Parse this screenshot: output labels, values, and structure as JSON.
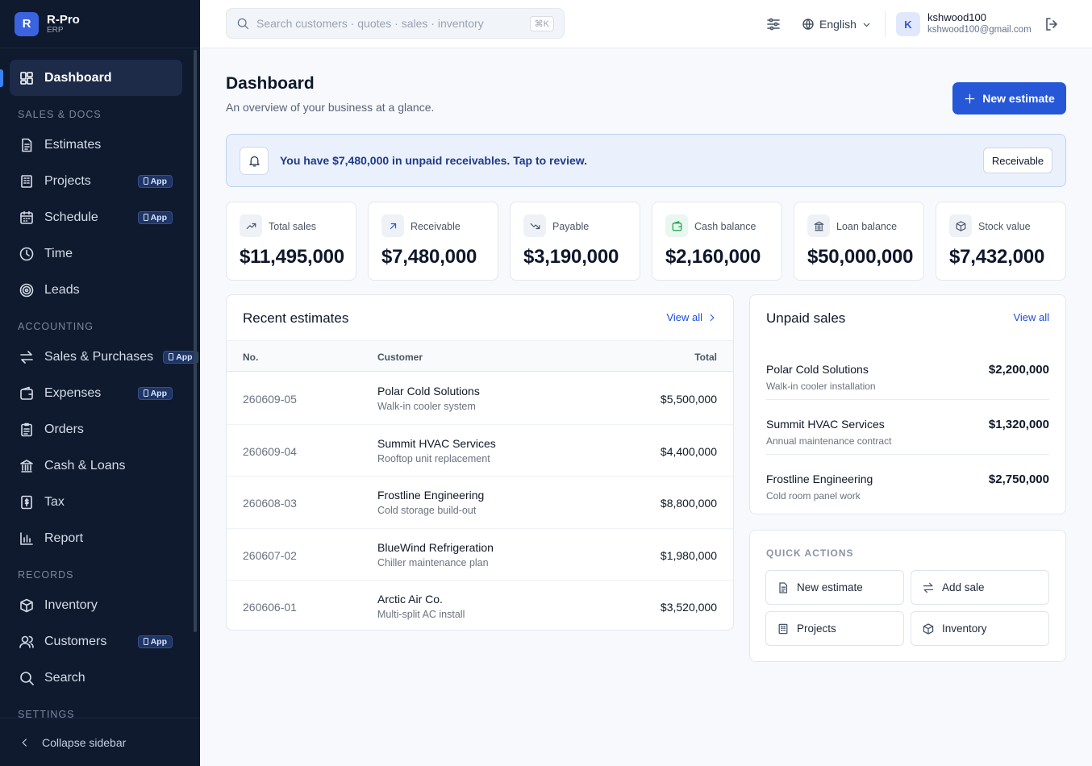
{
  "brand": {
    "logo": "R",
    "name": "R-Pro",
    "sub": "ERP"
  },
  "nav": {
    "primary": {
      "label": "Dashboard"
    },
    "sections": [
      {
        "title": "SALES & DOCS",
        "items": [
          {
            "label": "Estimates"
          },
          {
            "label": "Projects",
            "badge": "App"
          },
          {
            "label": "Schedule",
            "badge": "App"
          },
          {
            "label": "Time"
          },
          {
            "label": "Leads"
          }
        ]
      },
      {
        "title": "ACCOUNTING",
        "items": [
          {
            "label": "Sales & Purchases",
            "badge": "App"
          },
          {
            "label": "Expenses",
            "badge": "App"
          },
          {
            "label": "Orders"
          },
          {
            "label": "Cash & Loans"
          },
          {
            "label": "Tax"
          },
          {
            "label": "Report"
          }
        ]
      },
      {
        "title": "RECORDS",
        "items": [
          {
            "label": "Inventory"
          },
          {
            "label": "Customers",
            "badge": "App"
          },
          {
            "label": "Search"
          }
        ]
      },
      {
        "title": "SETTINGS"
      }
    ],
    "collapse": "Collapse sidebar"
  },
  "topbar": {
    "search": "Search customers · quotes · sales · inventory",
    "shortcut": "⌘K",
    "language": "English",
    "avatar": "K",
    "user": "kshwood100",
    "email": "kshwood100@gmail.com"
  },
  "header": {
    "title": "Dashboard",
    "subtitle": "An overview of your business at a glance.",
    "button": "New estimate"
  },
  "alert": {
    "text": "You have $7,480,000 in unpaid receivables. Tap to review.",
    "button": "Receivable"
  },
  "kpis": [
    {
      "label": "Total sales",
      "value": "$11,495,000"
    },
    {
      "label": "Receivable",
      "value": "$7,480,000"
    },
    {
      "label": "Payable",
      "value": "$3,190,000"
    },
    {
      "label": "Cash balance",
      "value": "$2,160,000"
    },
    {
      "label": "Loan balance",
      "value": "$50,000,000"
    },
    {
      "label": "Stock value",
      "value": "$7,432,000"
    }
  ],
  "recent": {
    "title": "Recent estimates",
    "link": "View all",
    "columns": [
      "No.",
      "Customer",
      "Total"
    ],
    "rows": [
      {
        "no": "260609-05",
        "customer": "Polar Cold Solutions",
        "desc": "Walk-in cooler system",
        "total": "$5,500,000"
      },
      {
        "no": "260609-04",
        "customer": "Summit HVAC Services",
        "desc": "Rooftop unit replacement",
        "total": "$4,400,000"
      },
      {
        "no": "260608-03",
        "customer": "Frostline Engineering",
        "desc": "Cold storage build-out",
        "total": "$8,800,000"
      },
      {
        "no": "260607-02",
        "customer": "BlueWind Refrigeration",
        "desc": "Chiller maintenance plan",
        "total": "$1,980,000"
      },
      {
        "no": "260606-01",
        "customer": "Arctic Air Co.",
        "desc": "Multi-split AC install",
        "total": "$3,520,000"
      }
    ]
  },
  "unpaid": {
    "title": "Unpaid sales",
    "link": "View all",
    "rows": [
      {
        "customer": "Polar Cold Solutions",
        "desc": "Walk-in cooler installation",
        "amount": "$2,200,000"
      },
      {
        "customer": "Summit HVAC Services",
        "desc": "Annual maintenance contract",
        "amount": "$1,320,000"
      },
      {
        "customer": "Frostline Engineering",
        "desc": "Cold room panel work",
        "amount": "$2,750,000"
      }
    ]
  },
  "quick_actions": {
    "title": "QUICK ACTIONS",
    "items": [
      "New estimate",
      "Add sale",
      "Projects",
      "Inventory"
    ]
  }
}
